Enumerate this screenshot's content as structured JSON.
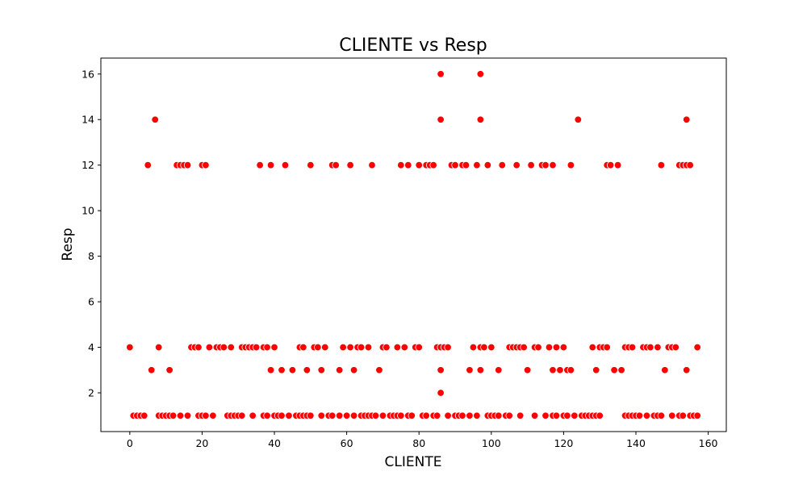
{
  "chart_data": {
    "type": "scatter",
    "title": "CLIENTE vs Resp",
    "xlabel": "CLIENTE",
    "ylabel": "Resp",
    "xlim": [
      -8,
      165
    ],
    "ylim": [
      0.3,
      16.7
    ],
    "xticks": [
      0,
      20,
      40,
      60,
      80,
      100,
      120,
      140,
      160
    ],
    "yticks": [
      2,
      4,
      6,
      8,
      10,
      12,
      14,
      16
    ],
    "grid": false,
    "legend": "none",
    "point_color": "#ff0000",
    "series": [
      {
        "x": [
          0,
          1,
          2,
          3,
          4,
          5,
          6,
          7,
          8,
          8,
          9,
          10,
          11,
          11,
          12,
          13,
          14,
          14,
          15,
          16,
          16,
          17,
          18,
          19,
          19,
          20,
          20,
          21,
          21,
          22,
          23,
          24,
          25,
          26,
          27,
          28,
          28,
          29,
          30,
          31,
          31,
          32,
          33,
          34,
          34,
          35,
          36,
          37,
          37,
          38,
          38,
          39,
          39,
          40,
          40,
          41,
          42,
          42,
          43,
          44,
          45,
          46,
          47,
          47,
          48,
          48,
          49,
          49,
          50,
          50,
          51,
          52,
          53,
          53,
          54,
          55,
          56,
          56,
          57,
          58,
          58,
          59,
          60,
          60,
          61,
          61,
          62,
          62,
          63,
          64,
          64,
          65,
          66,
          66,
          67,
          67,
          68,
          69,
          70,
          70,
          71,
          72,
          73,
          74,
          74,
          75,
          75,
          76,
          77,
          77,
          78,
          79,
          80,
          80,
          81,
          82,
          82,
          83,
          84,
          84,
          85,
          85,
          86,
          86,
          86,
          86,
          86,
          87,
          88,
          88,
          89,
          90,
          90,
          91,
          92,
          92,
          93,
          94,
          94,
          95,
          96,
          96,
          97,
          97,
          97,
          97,
          98,
          99,
          99,
          100,
          100,
          101,
          102,
          102,
          103,
          104,
          105,
          105,
          106,
          107,
          107,
          108,
          108,
          109,
          110,
          111,
          112,
          112,
          113,
          114,
          115,
          115,
          116,
          117,
          117,
          117,
          118,
          118,
          119,
          120,
          120,
          121,
          121,
          122,
          122,
          123,
          124,
          125,
          126,
          127,
          128,
          128,
          129,
          129,
          130,
          130,
          131,
          132,
          132,
          133,
          134,
          135,
          136,
          137,
          137,
          138,
          138,
          139,
          139,
          140,
          141,
          142,
          143,
          143,
          144,
          145,
          146,
          146,
          147,
          147,
          148,
          149,
          150,
          150,
          151,
          152,
          152,
          153,
          153,
          154,
          154,
          154,
          155,
          155,
          156,
          157,
          157
        ],
        "y": [
          4,
          1,
          1,
          1,
          1,
          12,
          3,
          14,
          4,
          1,
          1,
          1,
          3,
          1,
          1,
          12,
          12,
          1,
          12,
          12,
          1,
          4,
          4,
          4,
          1,
          12,
          1,
          12,
          1,
          4,
          1,
          4,
          4,
          4,
          1,
          4,
          1,
          1,
          1,
          4,
          1,
          4,
          4,
          4,
          1,
          4,
          12,
          4,
          1,
          4,
          1,
          12,
          3,
          4,
          1,
          1,
          3,
          1,
          12,
          1,
          3,
          1,
          4,
          1,
          4,
          1,
          3,
          1,
          12,
          1,
          4,
          4,
          3,
          1,
          4,
          1,
          12,
          1,
          12,
          1,
          3,
          4,
          1,
          1,
          12,
          4,
          3,
          1,
          4,
          4,
          1,
          1,
          4,
          1,
          12,
          1,
          1,
          3,
          4,
          1,
          4,
          1,
          1,
          4,
          1,
          12,
          1,
          4,
          12,
          1,
          1,
          4,
          12,
          4,
          1,
          12,
          1,
          12,
          12,
          1,
          4,
          1,
          16,
          14,
          4,
          3,
          2,
          4,
          4,
          1,
          12,
          12,
          1,
          1,
          12,
          1,
          12,
          1,
          3,
          4,
          1,
          12,
          16,
          14,
          4,
          3,
          4,
          12,
          1,
          4,
          1,
          1,
          3,
          1,
          12,
          1,
          4,
          1,
          4,
          12,
          4,
          4,
          1,
          4,
          3,
          12,
          4,
          1,
          4,
          12,
          12,
          1,
          4,
          12,
          3,
          1,
          4,
          1,
          3,
          4,
          1,
          3,
          1,
          12,
          3,
          1,
          14,
          1,
          1,
          1,
          4,
          1,
          3,
          1,
          4,
          1,
          4,
          12,
          4,
          12,
          3,
          12,
          3,
          4,
          1,
          4,
          1,
          4,
          1,
          1,
          1,
          4,
          4,
          1,
          4,
          1,
          4,
          1,
          12,
          1,
          3,
          4,
          4,
          1,
          4,
          12,
          1,
          12,
          1,
          14,
          12,
          3,
          12,
          1,
          1,
          4,
          1
        ]
      }
    ]
  }
}
